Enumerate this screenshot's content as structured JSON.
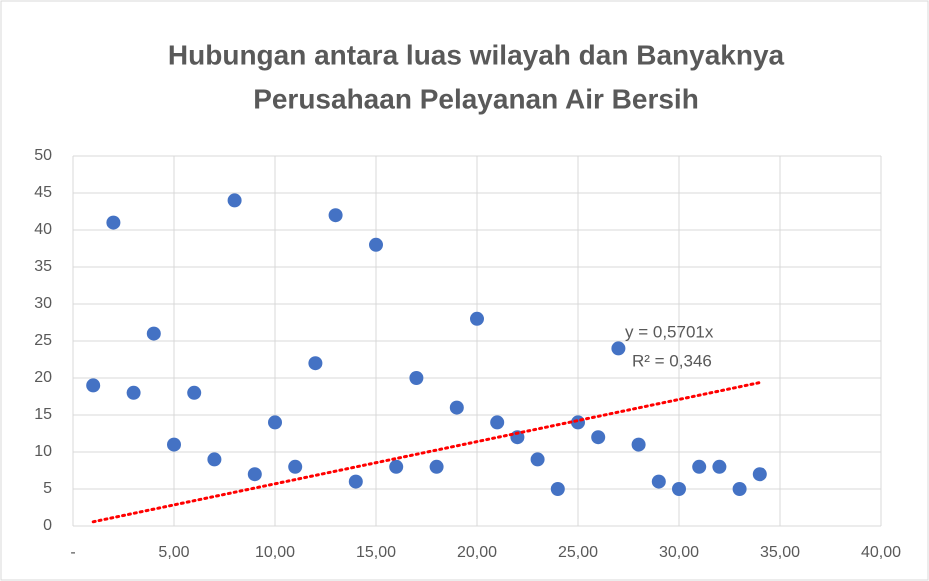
{
  "chart_data": {
    "type": "scatter",
    "title": [
      "Hubungan antara luas wilayah dan Banyaknya",
      "Perusahaan Pelayanan Air Bersih"
    ],
    "x": [
      1,
      2,
      3,
      4,
      5,
      6,
      7,
      8,
      9,
      10,
      11,
      12,
      13,
      14,
      15,
      16,
      17,
      18,
      19,
      20,
      21,
      22,
      23,
      24,
      25,
      26,
      27,
      28,
      29,
      30,
      31,
      32,
      33,
      34
    ],
    "values": [
      19,
      41,
      18,
      26,
      11,
      18,
      9,
      44,
      7,
      14,
      8,
      22,
      42,
      6,
      38,
      8,
      20,
      8,
      16,
      28,
      14,
      12,
      9,
      5,
      14,
      12,
      24,
      11,
      6,
      5,
      8,
      8,
      5,
      7
    ],
    "color": "#4472c4",
    "xlim": [
      0,
      40
    ],
    "xticks": [
      {
        "value": 0,
        "label": "-"
      },
      {
        "value": 5,
        "label": "5,00"
      },
      {
        "value": 10,
        "label": "10,00"
      },
      {
        "value": 15,
        "label": "15,00"
      },
      {
        "value": 20,
        "label": "20,00"
      },
      {
        "value": 25,
        "label": "25,00"
      },
      {
        "value": 30,
        "label": "30,00"
      },
      {
        "value": 35,
        "label": "35,00"
      },
      {
        "value": 40,
        "label": "40,00"
      }
    ],
    "ylim": [
      0,
      50
    ],
    "yticks": [
      0,
      5,
      10,
      15,
      20,
      25,
      30,
      35,
      40,
      45,
      50
    ],
    "grid": true,
    "trendline": {
      "slope": 0.5701,
      "color": "#ff0000",
      "equation": "y = 0,5701x",
      "r_squared_label": "R² = 0,346"
    }
  }
}
